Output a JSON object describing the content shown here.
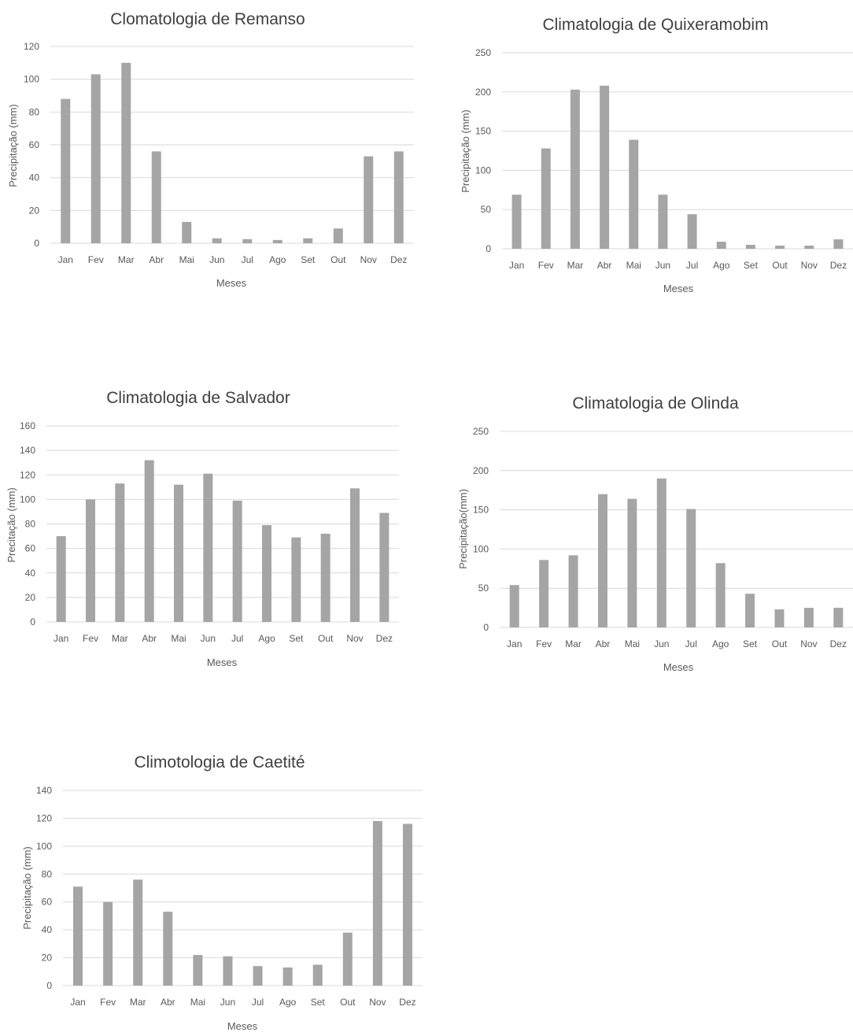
{
  "chart_data": [
    {
      "type": "bar",
      "title": "Clomatologia de Remanso",
      "xlabel": "Meses",
      "ylabel": "Precipitação (mm)",
      "categories": [
        "Jan",
        "Fev",
        "Mar",
        "Abr",
        "Mai",
        "Jun",
        "Jul",
        "Ago",
        "Set",
        "Out",
        "Nov",
        "Dez"
      ],
      "values": [
        88,
        103,
        110,
        56,
        13,
        3,
        2.5,
        2,
        3,
        9,
        53,
        56
      ],
      "ylim": [
        0,
        120
      ],
      "yticks": [
        0,
        20,
        40,
        60,
        80,
        100,
        120
      ],
      "grid": true,
      "color": "#a5a5a5"
    },
    {
      "type": "bar",
      "title": "Climatologia de Quixeramobim",
      "xlabel": "Meses",
      "ylabel": "Precipitação (mm)",
      "categories": [
        "Jan",
        "Fev",
        "Mar",
        "Abr",
        "Mai",
        "Jun",
        "Jul",
        "Ago",
        "Set",
        "Out",
        "Nov",
        "Dez"
      ],
      "values": [
        69,
        128,
        203,
        208,
        139,
        69,
        44,
        9,
        5,
        4,
        4,
        12
      ],
      "ylim": [
        0,
        250
      ],
      "yticks": [
        0,
        50,
        100,
        150,
        200,
        250
      ],
      "grid": true,
      "color": "#a5a5a5"
    },
    {
      "type": "bar",
      "title": "Climatologia de Salvador",
      "xlabel": "Meses",
      "ylabel": "Precitação (mm)",
      "categories": [
        "Jan",
        "Fev",
        "Mar",
        "Abr",
        "Mai",
        "Jun",
        "Jul",
        "Ago",
        "Set",
        "Out",
        "Nov",
        "Dez"
      ],
      "values": [
        70,
        100,
        113,
        132,
        112,
        121,
        99,
        79,
        69,
        72,
        109,
        89
      ],
      "ylim": [
        0,
        160
      ],
      "yticks": [
        0,
        20,
        40,
        60,
        80,
        100,
        120,
        140,
        160
      ],
      "grid": true,
      "color": "#a5a5a5"
    },
    {
      "type": "bar",
      "title": "Climatologia de Olinda",
      "xlabel": "Meses",
      "ylabel": "Precipitação(mm)",
      "categories": [
        "Jan",
        "Fev",
        "Mar",
        "Abr",
        "Mai",
        "Jun",
        "Jul",
        "Ago",
        "Set",
        "Out",
        "Nov",
        "Dez"
      ],
      "values": [
        54,
        86,
        92,
        170,
        164,
        190,
        151,
        82,
        43,
        23,
        25,
        25
      ],
      "ylim": [
        0,
        250
      ],
      "yticks": [
        0,
        50,
        100,
        150,
        200,
        250
      ],
      "grid": true,
      "color": "#a5a5a5"
    },
    {
      "type": "bar",
      "title": "Climotologia de Caetité",
      "xlabel": "Meses",
      "ylabel": "Precipitação (mm)",
      "categories": [
        "Jan",
        "Fev",
        "Mar",
        "Abr",
        "Mai",
        "Jun",
        "Jul",
        "Ago",
        "Set",
        "Out",
        "Nov",
        "Dez"
      ],
      "values": [
        71,
        60,
        76,
        53,
        22,
        21,
        14,
        13,
        15,
        38,
        118,
        116
      ],
      "ylim": [
        0,
        140
      ],
      "yticks": [
        0,
        20,
        40,
        60,
        80,
        100,
        120,
        140
      ],
      "grid": true,
      "color": "#a5a5a5"
    }
  ]
}
